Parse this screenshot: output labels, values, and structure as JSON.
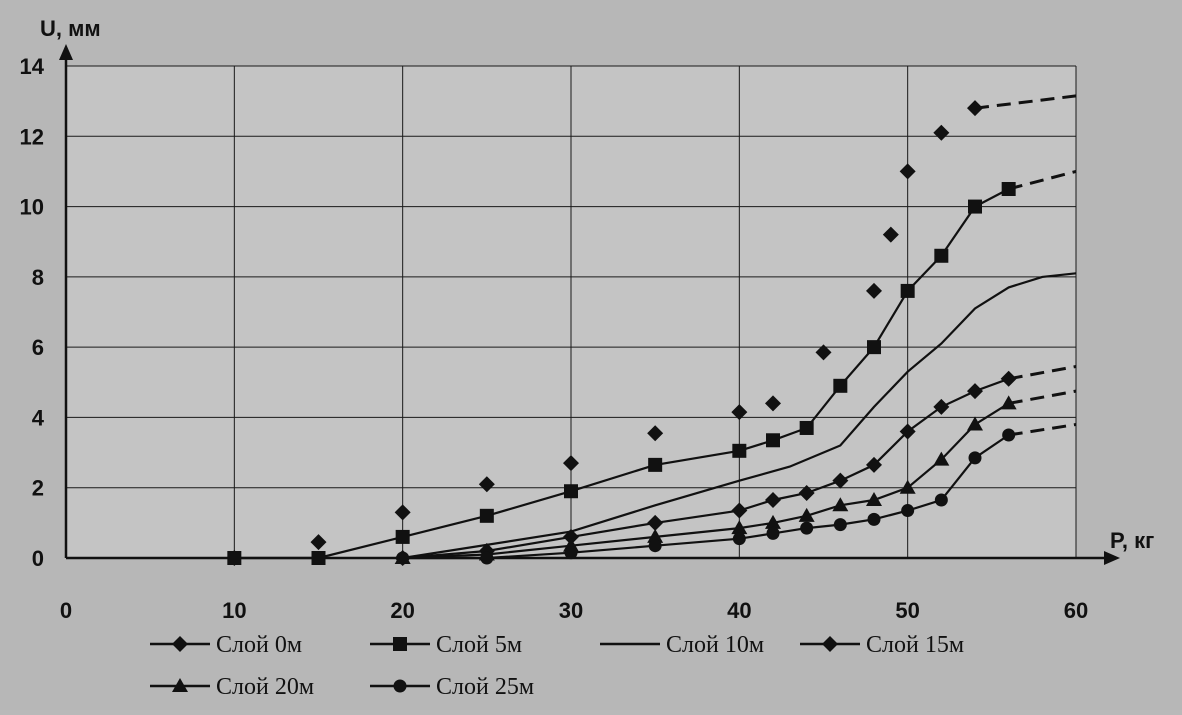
{
  "chart_data": {
    "type": "line",
    "xlabel": "P, кг",
    "ylabel": "U, мм",
    "xlim": [
      0,
      60
    ],
    "ylim": [
      0,
      14
    ],
    "x_ticks": [
      0,
      10,
      20,
      30,
      40,
      50,
      60
    ],
    "y_ticks": [
      0,
      2,
      4,
      6,
      8,
      10,
      12,
      14
    ],
    "grid": "vertical and horizontal at ticks",
    "legend_position": "bottom",
    "series": [
      {
        "name": "Слой 0м",
        "marker": "diamond",
        "line": "none",
        "points": [
          [
            10,
            0.0
          ],
          [
            15,
            0.45
          ],
          [
            20,
            1.3
          ],
          [
            25,
            2.1
          ],
          [
            30,
            2.7
          ],
          [
            35,
            3.55
          ],
          [
            40,
            4.15
          ],
          [
            42,
            4.4
          ],
          [
            45,
            5.85
          ],
          [
            48,
            7.6
          ],
          [
            49,
            9.2
          ],
          [
            50,
            11.0
          ],
          [
            52,
            12.1
          ],
          [
            54,
            12.8
          ]
        ],
        "dashed_extension": [
          [
            54,
            12.8
          ],
          [
            60,
            13.15
          ]
        ]
      },
      {
        "name": "Слой 5м",
        "marker": "square",
        "line": "solid",
        "points": [
          [
            10,
            0.0
          ],
          [
            15,
            0.0
          ],
          [
            20,
            0.6
          ],
          [
            25,
            1.2
          ],
          [
            30,
            1.9
          ],
          [
            35,
            2.65
          ],
          [
            40,
            3.05
          ],
          [
            42,
            3.35
          ],
          [
            44,
            3.7
          ],
          [
            46,
            4.9
          ],
          [
            48,
            6.0
          ],
          [
            50,
            7.6
          ],
          [
            52,
            8.6
          ],
          [
            54,
            10.0
          ],
          [
            56,
            10.5
          ]
        ],
        "dashed_extension": [
          [
            56,
            10.5
          ],
          [
            60,
            11.0
          ]
        ]
      },
      {
        "name": "Слой 10м",
        "marker": "none",
        "line": "solid",
        "points": [
          [
            20,
            0.0
          ],
          [
            30,
            0.75
          ],
          [
            35,
            1.5
          ],
          [
            40,
            2.2
          ],
          [
            43,
            2.6
          ],
          [
            46,
            3.2
          ],
          [
            48,
            4.3
          ],
          [
            50,
            5.3
          ],
          [
            52,
            6.1
          ],
          [
            54,
            7.1
          ],
          [
            56,
            7.7
          ],
          [
            58,
            8.0
          ],
          [
            60,
            8.1
          ]
        ]
      },
      {
        "name": "Слой 15м",
        "marker": "diamond",
        "line": "solid",
        "points": [
          [
            20,
            0.0
          ],
          [
            25,
            0.2
          ],
          [
            30,
            0.6
          ],
          [
            35,
            1.0
          ],
          [
            40,
            1.35
          ],
          [
            42,
            1.65
          ],
          [
            44,
            1.85
          ],
          [
            46,
            2.2
          ],
          [
            48,
            2.65
          ],
          [
            50,
            3.6
          ],
          [
            52,
            4.3
          ],
          [
            54,
            4.75
          ],
          [
            56,
            5.1
          ]
        ],
        "dashed_extension": [
          [
            56,
            5.1
          ],
          [
            60,
            5.45
          ]
        ]
      },
      {
        "name": "Слой 20м",
        "marker": "triangle",
        "line": "solid",
        "points": [
          [
            20,
            0.0
          ],
          [
            25,
            0.1
          ],
          [
            30,
            0.35
          ],
          [
            35,
            0.6
          ],
          [
            40,
            0.85
          ],
          [
            42,
            1.0
          ],
          [
            44,
            1.2
          ],
          [
            46,
            1.5
          ],
          [
            48,
            1.65
          ],
          [
            50,
            2.0
          ],
          [
            52,
            2.8
          ],
          [
            54,
            3.8
          ],
          [
            56,
            4.4
          ]
        ],
        "dashed_extension": [
          [
            56,
            4.4
          ],
          [
            60,
            4.75
          ]
        ]
      },
      {
        "name": "Слой 25м",
        "marker": "circle",
        "line": "solid",
        "points": [
          [
            20,
            0.0
          ],
          [
            25,
            0.0
          ],
          [
            30,
            0.15
          ],
          [
            35,
            0.35
          ],
          [
            40,
            0.55
          ],
          [
            42,
            0.7
          ],
          [
            44,
            0.85
          ],
          [
            46,
            0.95
          ],
          [
            48,
            1.1
          ],
          [
            50,
            1.35
          ],
          [
            52,
            1.65
          ],
          [
            54,
            2.85
          ],
          [
            56,
            3.5
          ]
        ],
        "dashed_extension": [
          [
            56,
            3.5
          ],
          [
            60,
            3.8
          ]
        ]
      }
    ]
  }
}
